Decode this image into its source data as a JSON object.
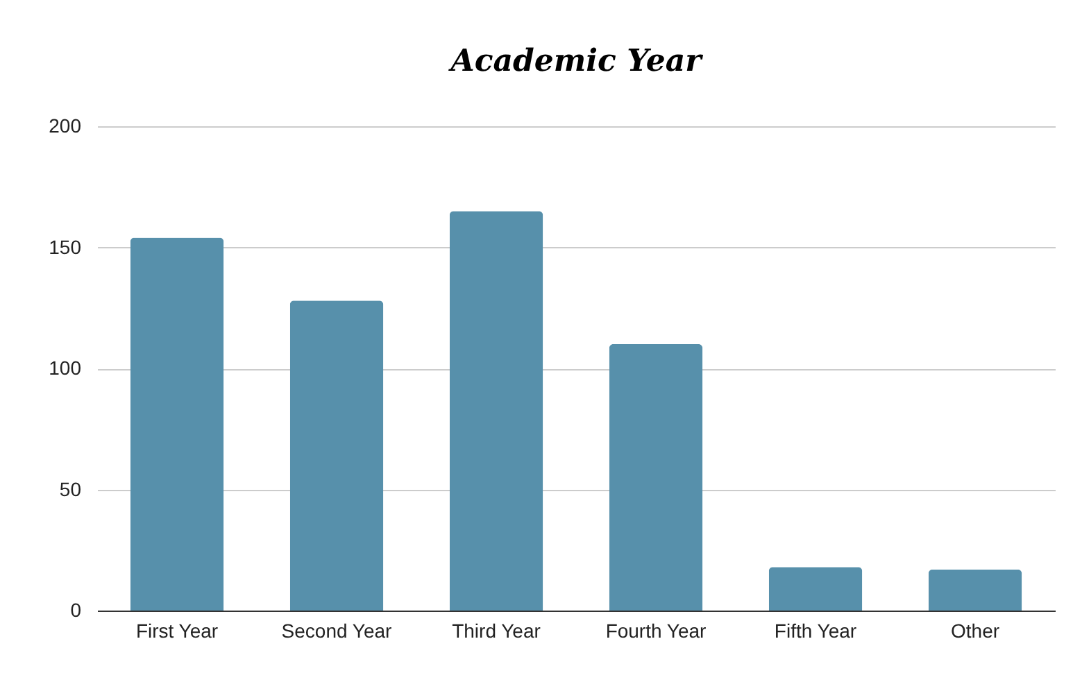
{
  "chart_data": {
    "type": "bar",
    "title": "Academic Year",
    "categories": [
      "First Year",
      "Second Year",
      "Third Year",
      "Fourth Year",
      "Fifth Year",
      "Other"
    ],
    "values": [
      154,
      128,
      165,
      110,
      18,
      17
    ],
    "color": "#5790ab",
    "ylim": [
      0,
      200
    ],
    "yticks": [
      0,
      50,
      100,
      150,
      200
    ],
    "grid": "y"
  }
}
